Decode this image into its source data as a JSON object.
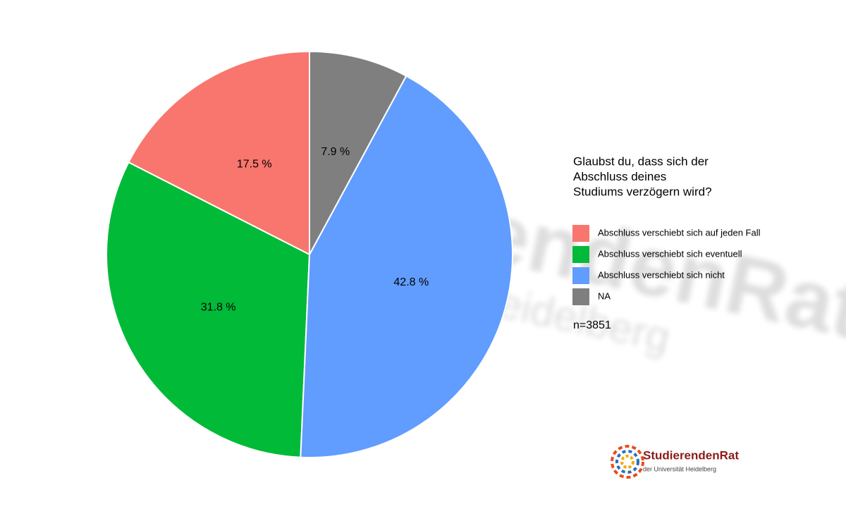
{
  "chart_data": {
    "type": "pie",
    "legend_title": [
      "Glaubst du, dass sich der",
      "Abschluss deines",
      "Studiums verzögern wird?"
    ],
    "categories": [
      "Abschluss verschiebt sich auf jeden Fall",
      "Abschluss verschiebt sich eventuell",
      "Abschluss verschiebt sich nicht",
      "NA"
    ],
    "values": [
      17.5,
      31.8,
      42.8,
      7.9
    ],
    "value_labels": [
      "17.5 %",
      "31.8 %",
      "42.8 %",
      "7.9 %"
    ],
    "colors": [
      "#F8766D",
      "#00BA38",
      "#619CFF",
      "#7F7F7F"
    ],
    "annotation": "n=3851",
    "legend_position": "right"
  },
  "logo": {
    "name": "StudierendenRat",
    "subtitle": "der Universität Heidelberg"
  }
}
